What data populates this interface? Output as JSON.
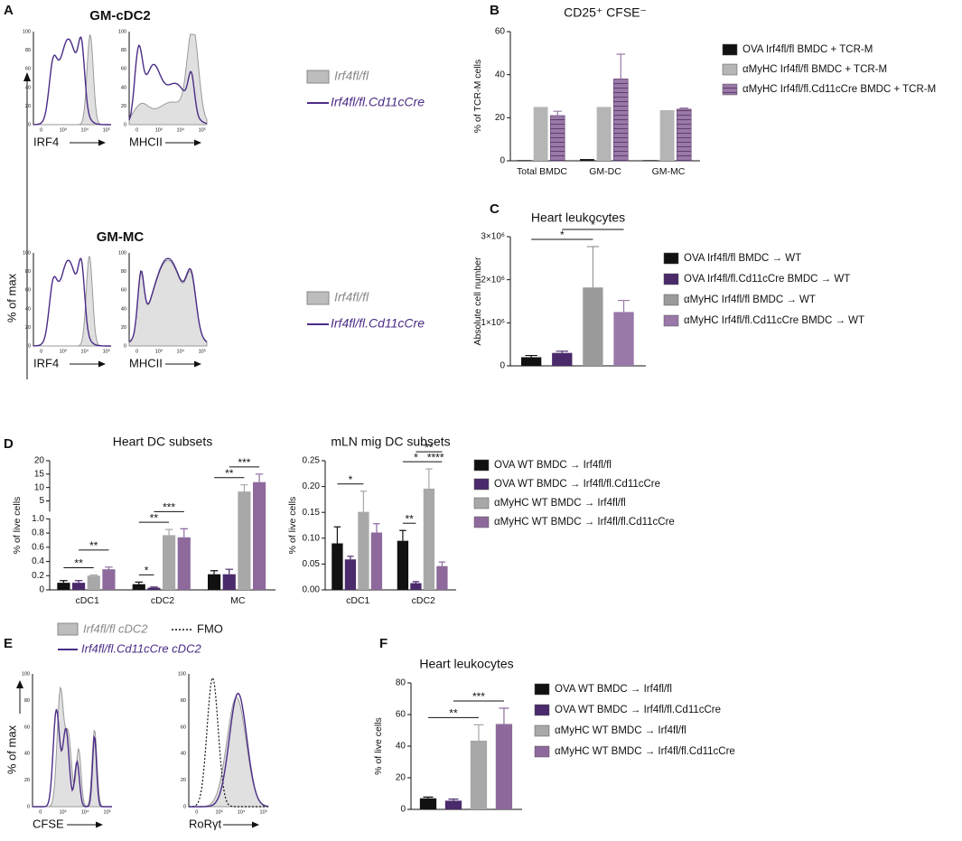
{
  "flow_panels": [
    {
      "panel_label": "A",
      "y_label": "% of max",
      "yticks": [
        0,
        20,
        40,
        60,
        80,
        100
      ],
      "xtick_labels": [
        "0",
        "10³",
        "10⁴",
        "10⁵"
      ],
      "groups": [
        {
          "title": "GM-cDC2",
          "plots": [
            {
              "x_label": "IRF4"
            },
            {
              "x_label": "MHCII"
            }
          ],
          "legend": [
            "Irf4fl/fl",
            "Irf4fl/fl.Cd11cCre"
          ]
        },
        {
          "title": "GM-MC",
          "plots": [
            {
              "x_label": "IRF4"
            },
            {
              "x_label": "MHCII"
            }
          ],
          "legend": [
            "Irf4fl/fl",
            "Irf4fl/fl.Cd11cCre"
          ]
        }
      ]
    },
    {
      "panel_label": "E",
      "y_label": "% of max",
      "yticks": [
        0,
        20,
        40,
        60,
        80,
        100
      ],
      "xtick_labels": [
        "0",
        "10³",
        "10⁴",
        "10⁵"
      ],
      "legend": [
        "Irf4fl/fl cDC2",
        "FMO",
        "Irf4fl/fl.Cd11cCre cDC2"
      ],
      "plots": [
        {
          "x_label": "CFSE"
        },
        {
          "x_label": "RoRγt"
        }
      ]
    }
  ],
  "chart_data": [
    {
      "type": "bar",
      "panel_label": "B",
      "title": "CD25⁺ CFSE⁻",
      "y_label": "% of TCR-M cells",
      "categories": [
        "Total BMDC",
        "GM-DC",
        "GM-MC"
      ],
      "ylim": [
        0,
        60
      ],
      "yticks": [
        0,
        20,
        40,
        60
      ],
      "series": [
        {
          "name": "OVA Irf4fl/fl BMDC + TCR-M",
          "color": "#111111",
          "values": [
            0.3,
            0.8,
            0.3
          ]
        },
        {
          "name": "αMyHC Irf4fl/fl BMDC + TCR-M",
          "color": "#b5b5b5",
          "values": [
            25,
            25,
            23.5
          ]
        },
        {
          "name": "αMyHC Irf4fl/fl.Cd11cCre BMDC + TCR-M",
          "color": "#9a78a8",
          "pattern": "hatch",
          "values": [
            21,
            38,
            24
          ],
          "errors": [
            2,
            11.5,
            0.5
          ]
        }
      ],
      "annotations": []
    },
    {
      "type": "bar",
      "panel_label": "C",
      "title": "Heart leukocytes",
      "y_label": "Absolute cell number",
      "categories": [
        null
      ],
      "ylim": [
        0,
        3000000
      ],
      "yticks": [
        0,
        {
          "value": 1000000,
          "label": "1×10⁶"
        },
        {
          "value": 2000000,
          "label": "2×10⁶"
        },
        {
          "value": 3000000,
          "label": "3×10⁶"
        }
      ],
      "series": [
        {
          "name": "OVA Irf4fl/fl BMDC → WT",
          "color": "#111111",
          "values": [
            200000
          ],
          "errors": [
            40000
          ]
        },
        {
          "name": "OVA Irf4fl/fl.Cd11cCre BMDC → WT",
          "color": "#4a2a6a",
          "values": [
            300000
          ],
          "errors": [
            40000
          ]
        },
        {
          "name": "αMyHC Irf4fl/fl BMDC → WT",
          "color": "#9a9a9a",
          "values": [
            1820000
          ],
          "errors": [
            950000
          ]
        },
        {
          "name": "αMyHC Irf4fl/fl.Cd11cCre BMDC → WT",
          "color": "#9a78a8",
          "values": [
            1250000
          ],
          "errors": [
            270000
          ]
        }
      ],
      "annotations": [
        {
          "label": "*",
          "between": [
            0,
            0,
            2
          ]
        },
        {
          "label": "*",
          "between": [
            0,
            1,
            3
          ]
        }
      ]
    },
    {
      "type": "bar",
      "panel_label": "D",
      "title": "Heart DC subsets",
      "y_label": "% of live cells",
      "categories": [
        "cDC1",
        "cDC2",
        "MC"
      ],
      "ylim": [
        0,
        20
      ],
      "ybreak": 1,
      "yticks": [
        0,
        0.2,
        0.4,
        0.6,
        0.8,
        {
          "value": 1,
          "label": "1.0"
        },
        5,
        10,
        15,
        20
      ],
      "series": [
        {
          "name": "OVA WT BMDC → Irf4fl/fl",
          "color": "#111111",
          "values": [
            0.1,
            0.08,
            0.22
          ],
          "errors": [
            0.03,
            0.03,
            0.05
          ]
        },
        {
          "name": "OVA WT BMDC → Irf4fl/fl.Cd11cCre",
          "color": "#4a2a6a",
          "values": [
            0.1,
            0.03,
            0.22
          ],
          "errors": [
            0.03,
            0.01,
            0.07
          ]
        },
        {
          "name": "αMyHC WT BMDC → Irf4fl/fl",
          "color": "#a8a8a8",
          "values": [
            0.2,
            0.77,
            8.5
          ],
          "errors": [
            0.01,
            0.08,
            2.5
          ]
        },
        {
          "name": "αMyHC WT BMDC → Irf4fl/fl.Cd11cCre",
          "color": "#8e6a9c",
          "values": [
            0.29,
            0.74,
            12
          ],
          "errors": [
            0.03,
            0.12,
            3
          ]
        }
      ],
      "annotations": [
        {
          "label": "**",
          "between": [
            0,
            0,
            2
          ]
        },
        {
          "label": "**",
          "between": [
            0,
            1,
            3
          ]
        },
        {
          "label": "*",
          "between": [
            1,
            0,
            1
          ]
        },
        {
          "label": "**",
          "between": [
            1,
            0,
            2
          ]
        },
        {
          "label": "***",
          "between": [
            1,
            1,
            3
          ]
        },
        {
          "label": "**",
          "between": [
            2,
            0,
            2
          ]
        },
        {
          "label": "***",
          "between": [
            2,
            1,
            3
          ]
        }
      ]
    },
    {
      "type": "bar",
      "title": "mLN mig DC subsets",
      "y_label": "% of live cells",
      "categories": [
        "cDC1",
        "cDC2"
      ],
      "ylim": [
        0,
        0.25
      ],
      "yticks": [
        {
          "value": 0,
          "label": "0.00"
        },
        {
          "value": 0.05,
          "label": "0.05"
        },
        {
          "value": 0.1,
          "label": "0.10"
        },
        {
          "value": 0.15,
          "label": "0.15"
        },
        {
          "value": 0.2,
          "label": "0.20"
        },
        {
          "value": 0.25,
          "label": "0.25"
        }
      ],
      "series": [
        {
          "color": "#111111",
          "values": [
            0.09,
            0.095
          ],
          "errors": [
            0.032,
            0.02
          ]
        },
        {
          "color": "#4a2a6a",
          "values": [
            0.059,
            0.013
          ],
          "errors": [
            0.006,
            0.003
          ]
        },
        {
          "color": "#a8a8a8",
          "values": [
            0.151,
            0.196
          ],
          "errors": [
            0.04,
            0.038
          ]
        },
        {
          "color": "#8e6a9c",
          "values": [
            0.111,
            0.046
          ],
          "errors": [
            0.017,
            0.008
          ]
        }
      ],
      "annotations": [
        {
          "label": "*",
          "between": [
            0,
            0,
            2
          ]
        },
        {
          "label": "**",
          "between": [
            1,
            0,
            1
          ]
        },
        {
          "label": "*",
          "between": [
            1,
            0,
            2
          ]
        },
        {
          "label": "****",
          "between": [
            1,
            2,
            3
          ]
        },
        {
          "label": "**",
          "between": [
            1,
            1,
            3
          ]
        }
      ]
    },
    {
      "type": "bar",
      "panel_label": "F",
      "title": "Heart leukocytes",
      "y_label": "% of live cells",
      "categories": [
        null
      ],
      "ylim": [
        0,
        80
      ],
      "yticks": [
        0,
        20,
        40,
        60,
        80
      ],
      "series": [
        {
          "name": "OVA WT BMDC → Irf4fl/fl",
          "color": "#111111",
          "values": [
            7
          ],
          "errors": [
            0.8
          ]
        },
        {
          "name": "OVA WT BMDC → Irf4fl/fl.Cd11cCre",
          "color": "#4a2a6a",
          "values": [
            5.5
          ],
          "errors": [
            1
          ]
        },
        {
          "name": "αMyHC WT BMDC → Irf4fl/fl",
          "color": "#a8a8a8",
          "values": [
            43.5
          ],
          "errors": [
            10
          ]
        },
        {
          "name": "αMyHC WT BMDC → Irf4fl/fl.Cd11cCre",
          "color": "#8e6a9c",
          "values": [
            54
          ],
          "errors": [
            10
          ]
        }
      ],
      "annotations": [
        {
          "label": "**",
          "between": [
            0,
            0,
            2
          ]
        },
        {
          "label": "***",
          "between": [
            0,
            1,
            3
          ]
        }
      ]
    }
  ]
}
